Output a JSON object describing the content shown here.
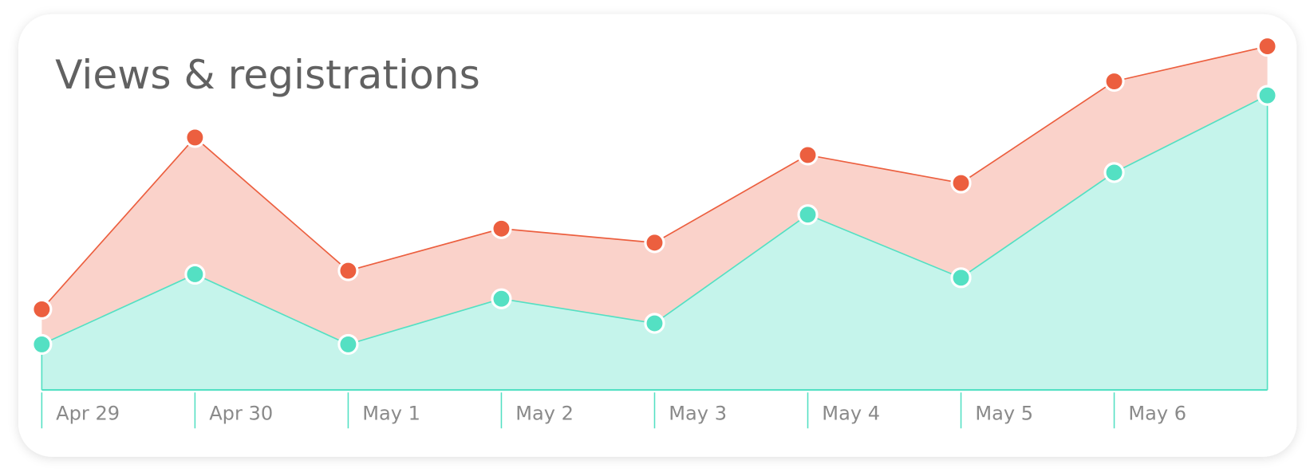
{
  "chart_data": {
    "type": "area",
    "title": "Views & registrations",
    "categories": [
      "Apr 29",
      "Apr 30",
      "May 1",
      "May 2",
      "May 3",
      "May 4",
      "May 5",
      "May 6",
      null
    ],
    "series": [
      {
        "color": "#ec5f3f",
        "values": [
          23,
          72,
          34,
          46,
          42,
          67,
          59,
          88,
          98
        ]
      },
      {
        "color": "#54e0c3",
        "values": [
          13,
          33,
          13,
          26,
          19,
          50,
          32,
          62,
          84
        ]
      }
    ],
    "ylim": [
      0,
      100
    ]
  }
}
